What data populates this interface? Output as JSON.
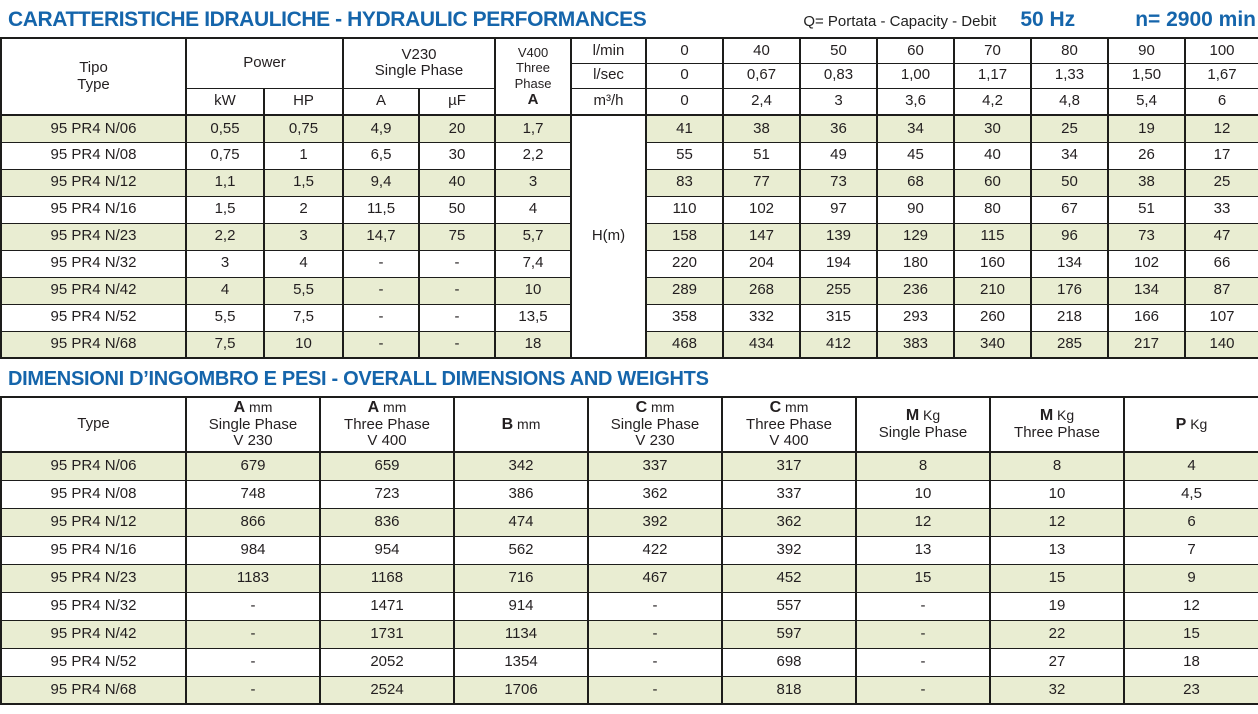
{
  "header": {
    "title": "CARATTERISTICHE IDRAULICHE - HYDRAULIC PERFORMANCES",
    "capacity_note": "Q= Portata - Capacity - Debit",
    "frequency": "50 Hz",
    "speed": "n= 2900 min"
  },
  "dimensions_title": "DIMENSIONI D’INGOMBRO E PESI - OVERALL DIMENSIONS AND WEIGHTS",
  "colors": {
    "accent_blue": "#1565ab",
    "row_green": "#e9edd2",
    "border": "#1d1d1b"
  },
  "hydraulic_table": {
    "type_label_it": "Tipo",
    "type_label_en": "Type",
    "power_label": "Power",
    "power_sub": [
      "kW",
      "HP"
    ],
    "v230_line1": "V230",
    "v230_line2": "Single Phase",
    "v230_sub": [
      "A",
      "µF"
    ],
    "v400_line1": "V400",
    "v400_line2": "Three",
    "v400_line3": "Phase",
    "v400_line4": "A",
    "flow_units": [
      "l/min",
      "l/sec",
      "m³/h"
    ],
    "flow_lmin": [
      "0",
      "40",
      "50",
      "60",
      "70",
      "80",
      "90",
      "100"
    ],
    "flow_lsec": [
      "0",
      "0,67",
      "0,83",
      "1,00",
      "1,17",
      "1,33",
      "1,50",
      "1,67"
    ],
    "flow_m3h": [
      "0",
      "2,4",
      "3",
      "3,6",
      "4,2",
      "4,8",
      "5,4",
      "6"
    ],
    "head_label": "H(m)",
    "rows": [
      {
        "type": "95 PR4 N/06",
        "kw": "0,55",
        "hp": "0,75",
        "a": "4,9",
        "uf": "20",
        "a400": "1,7",
        "h": [
          "41",
          "38",
          "36",
          "34",
          "30",
          "25",
          "19",
          "12"
        ]
      },
      {
        "type": "95 PR4 N/08",
        "kw": "0,75",
        "hp": "1",
        "a": "6,5",
        "uf": "30",
        "a400": "2,2",
        "h": [
          "55",
          "51",
          "49",
          "45",
          "40",
          "34",
          "26",
          "17"
        ]
      },
      {
        "type": "95 PR4 N/12",
        "kw": "1,1",
        "hp": "1,5",
        "a": "9,4",
        "uf": "40",
        "a400": "3",
        "h": [
          "83",
          "77",
          "73",
          "68",
          "60",
          "50",
          "38",
          "25"
        ]
      },
      {
        "type": "95 PR4 N/16",
        "kw": "1,5",
        "hp": "2",
        "a": "11,5",
        "uf": "50",
        "a400": "4",
        "h": [
          "110",
          "102",
          "97",
          "90",
          "80",
          "67",
          "51",
          "33"
        ]
      },
      {
        "type": "95 PR4 N/23",
        "kw": "2,2",
        "hp": "3",
        "a": "14,7",
        "uf": "75",
        "a400": "5,7",
        "h": [
          "158",
          "147",
          "139",
          "129",
          "115",
          "96",
          "73",
          "47"
        ]
      },
      {
        "type": "95 PR4 N/32",
        "kw": "3",
        "hp": "4",
        "a": "-",
        "uf": "-",
        "a400": "7,4",
        "h": [
          "220",
          "204",
          "194",
          "180",
          "160",
          "134",
          "102",
          "66"
        ]
      },
      {
        "type": "95 PR4 N/42",
        "kw": "4",
        "hp": "5,5",
        "a": "-",
        "uf": "-",
        "a400": "10",
        "h": [
          "289",
          "268",
          "255",
          "236",
          "210",
          "176",
          "134",
          "87"
        ]
      },
      {
        "type": "95 PR4 N/52",
        "kw": "5,5",
        "hp": "7,5",
        "a": "-",
        "uf": "-",
        "a400": "13,5",
        "h": [
          "358",
          "332",
          "315",
          "293",
          "260",
          "218",
          "166",
          "107"
        ]
      },
      {
        "type": "95 PR4 N/68",
        "kw": "7,5",
        "hp": "10",
        "a": "-",
        "uf": "-",
        "a400": "18",
        "h": [
          "468",
          "434",
          "412",
          "383",
          "340",
          "285",
          "217",
          "140"
        ]
      }
    ]
  },
  "dimensions_table": {
    "type_header": "Type",
    "col_headers": [
      {
        "b": "A",
        "unit": " mm",
        "line2": "Single Phase",
        "line3": "V 230"
      },
      {
        "b": "A",
        "unit": " mm",
        "line2": "Three Phase",
        "line3": "V 400"
      },
      {
        "b": "B",
        "unit": " mm"
      },
      {
        "b": "C",
        "unit": " mm",
        "line2": "Single Phase",
        "line3": "V 230"
      },
      {
        "b": "C",
        "unit": " mm",
        "line2": "Three Phase",
        "line3": "V 400"
      },
      {
        "b": "M",
        "unit": " Kg",
        "line2": "Single Phase"
      },
      {
        "b": "M",
        "unit": " Kg",
        "line2": "Three Phase"
      },
      {
        "b": "P",
        "unit": " Kg"
      }
    ],
    "rows": [
      {
        "type": "95 PR4 N/06",
        "values": [
          "679",
          "659",
          "342",
          "337",
          "317",
          "8",
          "8",
          "4"
        ]
      },
      {
        "type": "95 PR4 N/08",
        "values": [
          "748",
          "723",
          "386",
          "362",
          "337",
          "10",
          "10",
          "4,5"
        ]
      },
      {
        "type": "95 PR4 N/12",
        "values": [
          "866",
          "836",
          "474",
          "392",
          "362",
          "12",
          "12",
          "6"
        ]
      },
      {
        "type": "95 PR4 N/16",
        "values": [
          "984",
          "954",
          "562",
          "422",
          "392",
          "13",
          "13",
          "7"
        ]
      },
      {
        "type": "95 PR4 N/23",
        "values": [
          "1183",
          "1168",
          "716",
          "467",
          "452",
          "15",
          "15",
          "9"
        ]
      },
      {
        "type": "95 PR4 N/32",
        "values": [
          "-",
          "1471",
          "914",
          "-",
          "557",
          "-",
          "19",
          "12"
        ]
      },
      {
        "type": "95 PR4 N/42",
        "values": [
          "-",
          "1731",
          "1134",
          "-",
          "597",
          "-",
          "22",
          "15"
        ]
      },
      {
        "type": "95 PR4 N/52",
        "values": [
          "-",
          "2052",
          "1354",
          "-",
          "698",
          "-",
          "27",
          "18"
        ]
      },
      {
        "type": "95 PR4 N/68",
        "values": [
          "-",
          "2524",
          "1706",
          "-",
          "818",
          "-",
          "32",
          "23"
        ]
      }
    ]
  }
}
